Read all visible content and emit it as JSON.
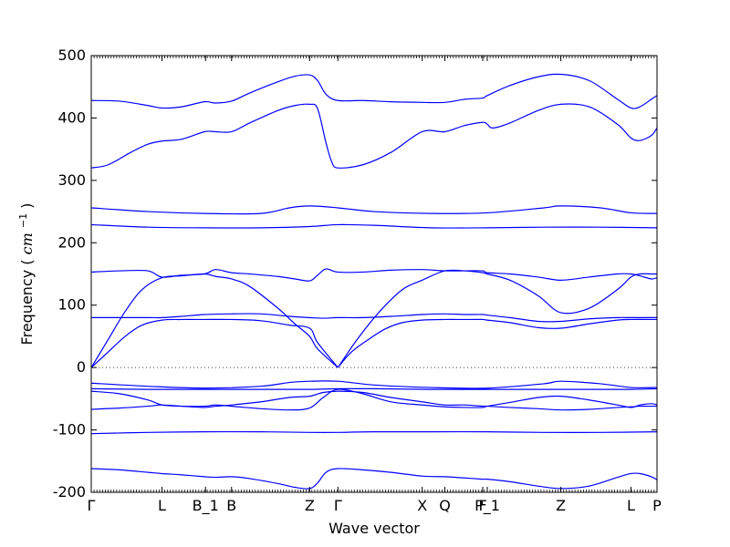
{
  "chart_data": {
    "type": "line",
    "title": "",
    "xlabel": "Wave vector",
    "ylabel": "Frequency",
    "ylabel_unit": "cm",
    "ylabel_unit_exp": "−1",
    "ylim": [
      -200,
      500
    ],
    "yticks": [
      -200,
      -100,
      0,
      100,
      200,
      300,
      400,
      500
    ],
    "xlim": [
      0,
      100
    ],
    "grid": false,
    "legend": "none",
    "zero_line": 0,
    "line_color": "#0000ff",
    "x_ticks": [
      {
        "label": "Γ",
        "x": 0
      },
      {
        "label": "L",
        "x": 12.5
      },
      {
        "label": "B_1",
        "x": 20.2
      },
      {
        "label": "B",
        "x": 24.8
      },
      {
        "label": "Z",
        "x": 38.6
      },
      {
        "label": "Γ",
        "x": 43.6
      },
      {
        "label": "X",
        "x": 58.5
      },
      {
        "label": "Q",
        "x": 62.5
      },
      {
        "label": "F",
        "x": 69.2
      },
      {
        "label": "P_1",
        "x": 70.0
      },
      {
        "label": "Z",
        "x": 83.0
      },
      {
        "label": "L",
        "x": 95.4
      },
      {
        "label": "P",
        "x": 100
      }
    ],
    "series": [
      {
        "x": [
          0,
          5,
          10,
          12.5,
          16,
          20,
          22,
          24.8,
          28,
          33,
          36,
          38.6,
          40,
          41.5,
          43.6,
          48,
          53,
          58.5,
          62.5,
          66,
          69.2,
          70,
          74,
          79,
          83,
          88,
          93,
          95.4,
          97,
          99,
          100
        ],
        "values": [
          428,
          427,
          420,
          416,
          418,
          426,
          424,
          427,
          440,
          458,
          467,
          469,
          460,
          438,
          428,
          428,
          426,
          425,
          425,
          430,
          432,
          436,
          452,
          466,
          470,
          460,
          430,
          416,
          418,
          430,
          436
        ]
      },
      {
        "x": [
          0,
          3,
          7,
          10,
          12.5,
          16,
          20,
          22,
          24.8,
          28,
          33,
          36,
          38.6,
          40,
          41.5,
          42.5,
          43.6,
          48,
          53,
          58.5,
          62.5,
          66,
          69.2,
          70,
          71,
          74,
          79,
          83,
          88,
          93,
          95.4,
          97,
          99,
          100
        ],
        "values": [
          320,
          325,
          345,
          358,
          363,
          366,
          378,
          378,
          378,
          392,
          412,
          420,
          422,
          415,
          360,
          330,
          320,
          325,
          345,
          378,
          378,
          388,
          393,
          390,
          384,
          392,
          412,
          422,
          418,
          390,
          368,
          364,
          372,
          384
        ]
      },
      {
        "x": [
          0,
          10,
          20,
          30,
          35,
          38.6,
          43.6,
          50,
          60,
          70,
          80,
          83,
          90,
          95.4,
          100
        ],
        "values": [
          256,
          250,
          247,
          247,
          256,
          259,
          256,
          250,
          247,
          248,
          256,
          259,
          256,
          248,
          247
        ]
      },
      {
        "x": [
          0,
          10,
          20,
          30,
          38.6,
          43.6,
          50,
          60,
          70,
          80,
          90,
          100
        ],
        "values": [
          229,
          225,
          224,
          224,
          226,
          229,
          228,
          224,
          224,
          225,
          225,
          224
        ]
      },
      {
        "x": [
          0,
          5,
          10,
          12.5,
          16,
          20,
          22,
          24.8,
          28,
          33,
          36,
          38.6,
          40,
          41.5,
          43.6,
          48,
          53,
          58.5,
          62.5,
          66,
          69.2,
          70,
          74,
          79,
          83,
          88,
          93,
          95.4,
          97,
          99,
          100
        ],
        "values": [
          153,
          155,
          155,
          145,
          148,
          150,
          157,
          152,
          150,
          146,
          142,
          139,
          148,
          158,
          153,
          153,
          156,
          157,
          155,
          155,
          155,
          152,
          150,
          145,
          140,
          145,
          150,
          150,
          147,
          142,
          144
        ]
      },
      {
        "x": [
          0,
          3,
          6,
          9,
          12.5,
          16,
          20,
          22,
          24.8,
          28,
          33,
          36,
          38.6,
          40,
          43.6
        ],
        "values": [
          0,
          45,
          90,
          125,
          144,
          147,
          150,
          146,
          142,
          130,
          95,
          70,
          50,
          30,
          0
        ]
      },
      {
        "x": [
          43.6,
          47,
          51,
          55,
          58.5,
          62.5,
          66,
          69.2,
          70,
          74,
          79,
          83,
          88,
          93,
          95.4,
          97,
          99,
          100
        ],
        "values": [
          0,
          45,
          90,
          125,
          140,
          155,
          155,
          152,
          150,
          140,
          115,
          88,
          95,
          125,
          145,
          150,
          150,
          150
        ]
      },
      {
        "x": [
          0,
          5,
          10,
          12.5,
          16,
          20,
          24.8,
          30,
          35,
          38.6,
          41,
          43.6,
          48,
          53,
          58.5,
          62.5,
          66,
          69.2,
          70,
          74,
          79,
          83,
          88,
          93,
          95.4,
          100
        ],
        "values": [
          80,
          80,
          80,
          80,
          82,
          85,
          86,
          86,
          82,
          80,
          79,
          80,
          80,
          82,
          85,
          86,
          85,
          85,
          84,
          80,
          74,
          74,
          78,
          80,
          80,
          80
        ]
      },
      {
        "x": [
          0,
          3,
          6,
          9,
          12.5,
          16,
          20,
          24.8,
          30,
          35,
          38.6,
          40,
          43.6
        ],
        "values": [
          0,
          25,
          50,
          68,
          76,
          77,
          77,
          77,
          75,
          68,
          63,
          40,
          0
        ]
      },
      {
        "x": [
          43.6,
          46,
          49,
          52,
          55,
          58.5,
          62.5,
          66,
          69.2,
          70,
          74,
          79,
          83,
          88,
          93,
          95.4,
          100
        ],
        "values": [
          0,
          25,
          45,
          62,
          72,
          76,
          77,
          77,
          77,
          76,
          72,
          64,
          63,
          70,
          76,
          77,
          77
        ]
      },
      {
        "x": [
          0,
          10,
          20,
          30,
          35,
          38.6,
          43.6,
          50,
          60,
          70,
          80,
          83,
          90,
          95.4,
          100
        ],
        "values": [
          -25,
          -30,
          -33,
          -30,
          -24,
          -22,
          -22,
          -28,
          -32,
          -33,
          -26,
          -22,
          -26,
          -32,
          -32
        ]
      },
      {
        "x": [
          0,
          10,
          20,
          30,
          38.6,
          43.6,
          50,
          60,
          70,
          80,
          90,
          95.4,
          100
        ],
        "values": [
          -34,
          -35,
          -35,
          -35,
          -35,
          -34,
          -34,
          -35,
          -35,
          -35,
          -35,
          -35,
          -34
        ]
      },
      {
        "x": [
          0,
          5,
          10,
          12.5,
          16,
          20,
          22,
          24.8,
          30,
          35,
          38.6,
          41,
          43.6,
          48,
          53,
          58.5,
          62.5,
          66,
          69.2,
          70,
          74,
          79,
          83,
          88,
          93,
          95.4,
          97,
          99,
          100
        ],
        "values": [
          -38,
          -42,
          -52,
          -60,
          -62,
          -62,
          -60,
          -62,
          -66,
          -68,
          -65,
          -48,
          -35,
          -42,
          -55,
          -60,
          -63,
          -64,
          -64,
          -62,
          -56,
          -48,
          -46,
          -52,
          -60,
          -64,
          -60,
          -58,
          -60
        ]
      },
      {
        "x": [
          0,
          5,
          10,
          12.5,
          16,
          20,
          22,
          24.8,
          30,
          35,
          38.6,
          41,
          43.6,
          48,
          53,
          58.5,
          62.5,
          66,
          69.2,
          70,
          74,
          79,
          83,
          88,
          93,
          95.4,
          97,
          99,
          100
        ],
        "values": [
          -67,
          -65,
          -62,
          -60,
          -62,
          -64,
          -62,
          -60,
          -55,
          -48,
          -46,
          -40,
          -38,
          -40,
          -48,
          -55,
          -60,
          -60,
          -62,
          -62,
          -64,
          -66,
          -68,
          -67,
          -64,
          -63,
          -62,
          -62,
          -62
        ]
      },
      {
        "x": [
          0,
          10,
          20,
          30,
          38.6,
          43.6,
          50,
          60,
          70,
          80,
          90,
          100
        ],
        "values": [
          -106,
          -104,
          -103,
          -103,
          -104,
          -104,
          -103,
          -103,
          -103,
          -104,
          -104,
          -103
        ]
      },
      {
        "x": [
          0,
          5,
          10,
          12.5,
          16,
          20,
          22,
          24.8,
          28,
          33,
          36,
          38.6,
          40,
          41.5,
          43.6,
          48,
          53,
          58.5,
          62.5,
          66,
          69.2,
          70,
          74,
          79,
          83,
          88,
          93,
          95.4,
          97,
          99,
          100
        ],
        "values": [
          -162,
          -164,
          -168,
          -170,
          -172,
          -175,
          -176,
          -175,
          -178,
          -186,
          -192,
          -194,
          -185,
          -168,
          -162,
          -164,
          -168,
          -174,
          -175,
          -177,
          -179,
          -179,
          -183,
          -190,
          -194,
          -190,
          -176,
          -170,
          -170,
          -175,
          -180
        ]
      }
    ]
  }
}
